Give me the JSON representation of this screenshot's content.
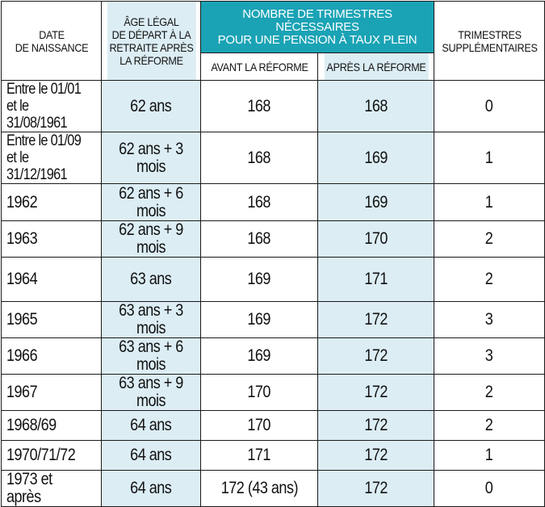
{
  "table": {
    "headers": {
      "birth_date": "DATE\nDE NAISSANCE",
      "legal_age": "ÂGE LÉGAL\nDE DÉPART À LA\nRETRAITE APRÈS\nLA RÉFORME",
      "quarters_group": "NOMBRE DE TRIMESTRES NÉCESSAIRES\nPOUR UNE PENSION À TAUX PLEIN",
      "before_reform": "AVANT LA RÉFORME",
      "after_reform": "APRÈS LA RÉFORME",
      "extra_quarters": "TRIMESTRES\nSUPPLÉMENTAIRES"
    },
    "rows": [
      {
        "birth": "Entre le 01/01\net le 31/08/1961",
        "age": "62 ans",
        "before": "168",
        "after": "168",
        "extra": "0"
      },
      {
        "birth": "Entre le 01/09\net le 31/12/1961",
        "age": "62 ans + 3 mois",
        "before": "168",
        "after": "169",
        "extra": "1"
      },
      {
        "birth": "1962",
        "age": "62 ans + 6 mois",
        "before": "168",
        "after": "169",
        "extra": "1"
      },
      {
        "birth": "1963",
        "age": "62 ans + 9 mois",
        "before": "168",
        "after": "170",
        "extra": "2"
      },
      {
        "birth": "1964",
        "age": "63 ans",
        "before": "169",
        "after": "171",
        "extra": "2"
      },
      {
        "birth": "1965",
        "age": "63 ans + 3 mois",
        "before": "169",
        "after": "172",
        "extra": "3"
      },
      {
        "birth": "1966",
        "age": "63 ans + 6 mois",
        "before": "169",
        "after": "172",
        "extra": "3"
      },
      {
        "birth": "1967",
        "age": "63 ans + 9 mois",
        "before": "170",
        "after": "172",
        "extra": "2"
      },
      {
        "birth": "1968/69",
        "age": "64 ans",
        "before": "170",
        "after": "172",
        "extra": "2"
      },
      {
        "birth": "1970/71/72",
        "age": "64 ans",
        "before": "171",
        "after": "172",
        "extra": "1"
      },
      {
        "birth": "1973 et après",
        "age": "64 ans",
        "before": "172 (43 ans)",
        "after": "172",
        "extra": "0"
      }
    ]
  },
  "colors": {
    "highlight_column": "#dcedf4",
    "header_accent": "#1aa3b5",
    "border": "#1a1a1a"
  }
}
